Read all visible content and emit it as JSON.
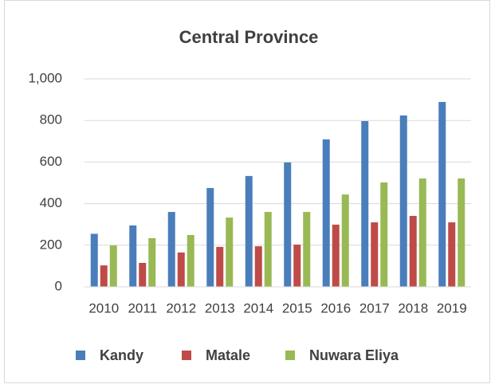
{
  "chart_data": {
    "type": "bar",
    "title": "Central Province",
    "categories": [
      "2010",
      "2011",
      "2012",
      "2013",
      "2014",
      "2015",
      "2016",
      "2017",
      "2018",
      "2019"
    ],
    "series": [
      {
        "name": "Kandy",
        "color": "#4a7ebb",
        "values": [
          255,
          295,
          360,
          475,
          533,
          598,
          709,
          797,
          824,
          889
        ]
      },
      {
        "name": "Matale",
        "color": "#be4b48",
        "values": [
          103,
          115,
          165,
          192,
          195,
          203,
          299,
          310,
          341,
          310
        ]
      },
      {
        "name": "Nuwara Eliya",
        "color": "#98b954",
        "values": [
          199,
          234,
          249,
          333,
          360,
          360,
          444,
          502,
          521,
          521
        ]
      }
    ],
    "ylim": [
      0,
      1000
    ],
    "yticks": [
      0,
      200,
      400,
      600,
      {
        "value": 800,
        "label": "800"
      },
      {
        "value": 1000,
        "label": "1,000"
      }
    ],
    "grid": true,
    "legend": "bottom"
  }
}
